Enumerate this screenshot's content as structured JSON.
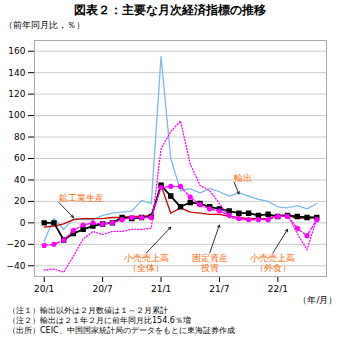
{
  "chart_data": {
    "type": "line",
    "title": "図表２：主要な月次経済指標の推移",
    "y_label": "（前年同月比，％）",
    "x_label": "（年/月）",
    "x": [
      1,
      2,
      3,
      4,
      5,
      6,
      7,
      8,
      9,
      10,
      11,
      12,
      13,
      14,
      15,
      16,
      17,
      18,
      19,
      20,
      21,
      22,
      23,
      24,
      25,
      26,
      27,
      28,
      29
    ],
    "xlim": [
      0,
      30
    ],
    "xticks": [
      {
        "value": 1,
        "label": "20/1"
      },
      {
        "value": 7,
        "label": "20/7"
      },
      {
        "value": 13,
        "label": "21/1"
      },
      {
        "value": 19,
        "label": "21/7"
      },
      {
        "value": 25,
        "label": "22/1"
      }
    ],
    "ylim": [
      -50,
      170
    ],
    "yticks": [
      -40,
      -20,
      0,
      20,
      40,
      60,
      80,
      100,
      120,
      140,
      160
    ],
    "grid": true,
    "series": [
      {
        "color": "#7CB9E8",
        "line_style": "solid",
        "values": [
          -17,
          4,
          -6,
          4,
          3,
          3,
          7,
          9,
          10,
          11,
          21,
          18,
          155,
          60,
          30,
          32,
          28,
          32,
          29,
          25,
          28,
          25,
          22,
          20,
          15,
          14,
          16,
          13,
          18
        ]
      },
      {
        "color": "#CC0000",
        "line_style": "solid",
        "values": [
          -4,
          -3,
          -1,
          3,
          4,
          4,
          4,
          5,
          5,
          6,
          6,
          7,
          35,
          9,
          14,
          10,
          9,
          8,
          8,
          6,
          5,
          4,
          4,
          4,
          7,
          7,
          4,
          5,
          5
        ]
      },
      {
        "color": "#000000",
        "line_style": "solid",
        "marker": "square",
        "values": [
          0,
          0,
          -16,
          -10,
          -6,
          -3,
          -1,
          0,
          5,
          4,
          5,
          6,
          35,
          25,
          15,
          19,
          18,
          15,
          13,
          11,
          9,
          9,
          7,
          8,
          6,
          7,
          6,
          5,
          5
        ]
      },
      {
        "color": "#FF00FF",
        "line_style": "dashed",
        "marker": "circle",
        "values": [
          -21,
          -20,
          -16,
          -7,
          -2,
          0,
          -1,
          0,
          3,
          5,
          5,
          5,
          33,
          34,
          34,
          24,
          17,
          13,
          11,
          7,
          4,
          3,
          3,
          3,
          6,
          6,
          -5,
          -12,
          3
        ]
      },
      {
        "color": "#FF00FF",
        "line_style": "dotted",
        "values": [
          -44,
          -43,
          -46,
          -31,
          -15,
          -8,
          -11,
          -8,
          -8,
          -6,
          -6,
          -5,
          69,
          85,
          95,
          55,
          35,
          30,
          18,
          5,
          3,
          3,
          3,
          4,
          7,
          8,
          -10,
          -25,
          4
        ]
      }
    ],
    "annotation_color": "#FF6600",
    "grid_color": "#CCCCCC",
    "annotations": [
      {
        "text": "鉱工業生産",
        "x": 4,
        "y": 5,
        "text_x": 2.5,
        "text_y": 19
      },
      {
        "text": "輸出",
        "x": 21,
        "y": 27,
        "text_x": 20.5,
        "text_y": 38
      },
      {
        "text": "小売売上高\n（全体）",
        "x": 14,
        "y": -4,
        "text_x": 11.5,
        "text_y": -28
      },
      {
        "text": "固定資産\n投資",
        "x": 19,
        "y": -2,
        "text_x": 18,
        "text_y": -28
      },
      {
        "text": "小売売上高\n（外食）",
        "x": 26,
        "y": -6,
        "text_x": 24.5,
        "text_y": -28
      }
    ],
    "notes": [
      "（注１）輸出以外は２月数値は１～２月累計",
      "（注２）輸出は２１年２月に前年同月比154.6％増",
      "（出所）CEIC、中国国家統計局のデータをもとに東海証券作成"
    ]
  }
}
